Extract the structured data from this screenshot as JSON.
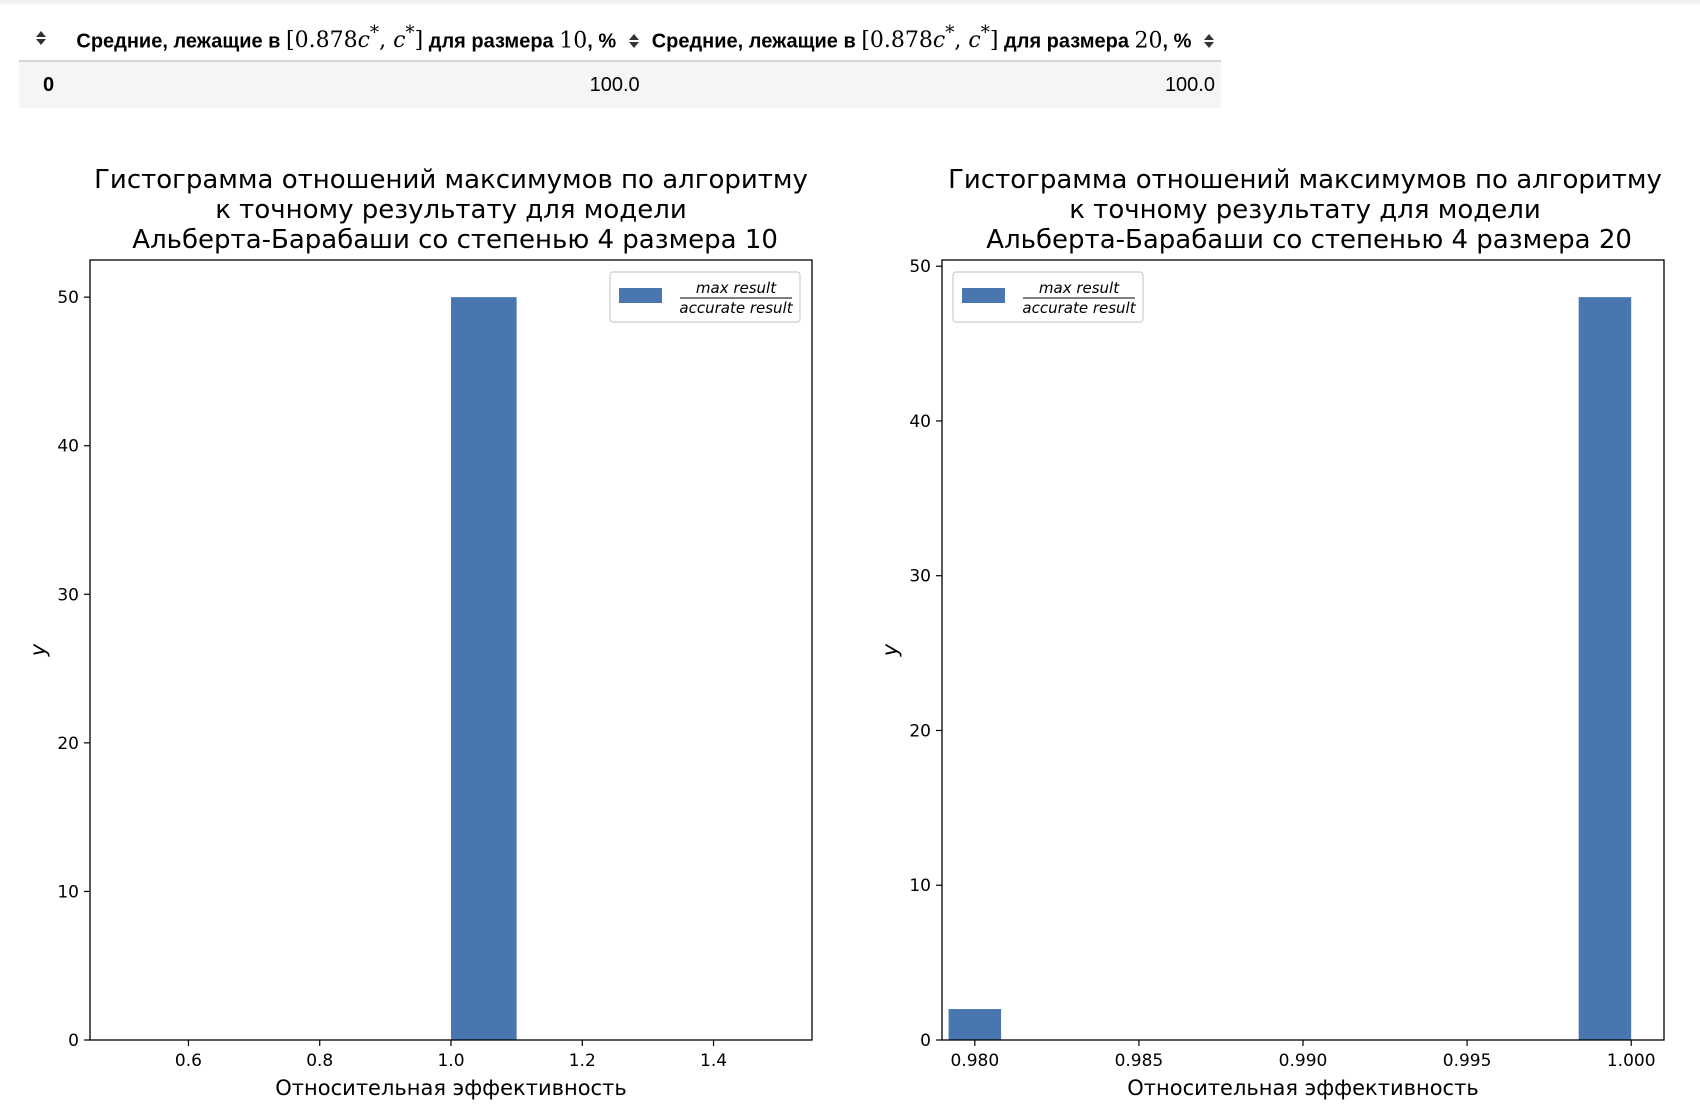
{
  "table": {
    "headers": [
      {
        "prefix": "Средние, лежащие в ",
        "math_lo": "0.878",
        "math_sym": "c",
        "math_sup": "*",
        "suffix_pre": " для размера ",
        "size": "10",
        "suffix": ", %"
      },
      {
        "prefix": "Средние, лежащие в ",
        "math_lo": "0.878",
        "math_sym": "c",
        "math_sup": "*",
        "suffix_pre": " для размера ",
        "size": "20",
        "suffix": ", %"
      }
    ],
    "rows": [
      {
        "index": "0",
        "values": [
          "100.0",
          "100.0"
        ]
      }
    ]
  },
  "chart_data": [
    {
      "type": "bar",
      "title": "Гистограмма отношений максимумов по алгоритму\nк точному результату для модели\n Альберта-Барабаши со степенью 4 размера 10",
      "xlabel": "Относительная эффективность",
      "ylabel": "y",
      "xlim": [
        0.45,
        1.55
      ],
      "ylim": [
        0,
        52.5
      ],
      "xticks": [
        "0.6",
        "0.8",
        "1.0",
        "1.2",
        "1.4"
      ],
      "yticks": [
        "0",
        "10",
        "20",
        "30",
        "40",
        "50"
      ],
      "bins": [
        {
          "x0": 1.0,
          "x1": 1.1,
          "count": 50
        }
      ],
      "legend": {
        "numerator": "max result",
        "denominator": "accurate result",
        "position": "upper right"
      },
      "color": "#4a76b0"
    },
    {
      "type": "bar",
      "title": "Гистограмма отношений максимумов по алгоритму\nк точному результату для модели\n Альберта-Барабаши со степенью 4 размера 20",
      "xlabel": "Относительная эффективность",
      "ylabel": "y",
      "xlim": [
        0.979,
        1.001
      ],
      "ylim": [
        0,
        50.4
      ],
      "xticks": [
        "0.980",
        "0.985",
        "0.990",
        "0.995",
        "1.000"
      ],
      "yticks": [
        "0",
        "10",
        "20",
        "30",
        "40",
        "50"
      ],
      "bins": [
        {
          "x0": 0.9792,
          "x1": 0.9808,
          "count": 2
        },
        {
          "x0": 0.9984,
          "x1": 1.0,
          "count": 48
        }
      ],
      "legend": {
        "numerator": "max result",
        "denominator": "accurate result",
        "position": "upper left"
      },
      "color": "#4a76b0"
    }
  ]
}
